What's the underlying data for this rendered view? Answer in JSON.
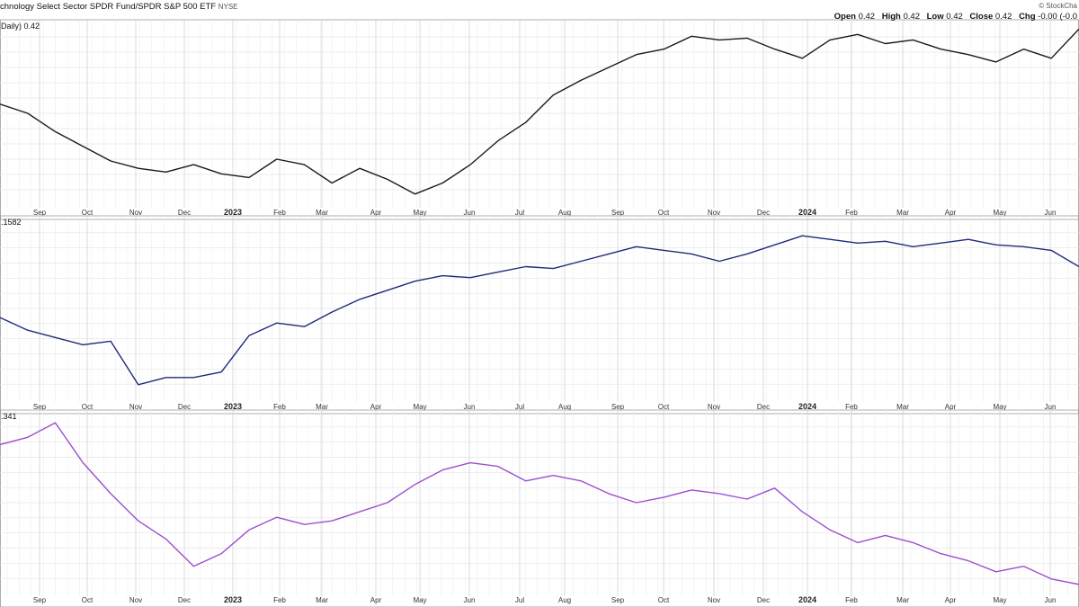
{
  "header": {
    "title": "chnology Select Sector SPDR Fund/SPDR S&P 500 ETF",
    "exchange": "NYSE",
    "watermark": "© StockCha",
    "ohlc": {
      "open_label": "Open",
      "open": "0.42",
      "high_label": "High",
      "high": "0.42",
      "low_label": "Low",
      "low": "0.42",
      "close_label": "Close",
      "close": "0.42",
      "chg_label": "Chg",
      "chg": "-0.00 (-0.0"
    }
  },
  "chart_data": [
    {
      "type": "line",
      "label": "Daily) 0.42",
      "color": "#1a1a1a",
      "ylim": [
        0,
        100
      ],
      "x_tick_labels": [
        "Sep",
        "Oct",
        "Nov",
        "Dec",
        "2023",
        "Feb",
        "Mar",
        "Apr",
        "May",
        "Jun",
        "Jul",
        "Aug",
        "Sep",
        "Oct",
        "Nov",
        "Dec",
        "2024",
        "Feb",
        "Mar",
        "Apr",
        "May",
        "Jun"
      ],
      "x": [
        0,
        3,
        6,
        9,
        12,
        15,
        18,
        21,
        24,
        27,
        30,
        33,
        36,
        39,
        42,
        45,
        48,
        51,
        54,
        57,
        60,
        63,
        66,
        69,
        72,
        75,
        78,
        81,
        84,
        87,
        90,
        93,
        96,
        99,
        102,
        105,
        108,
        111,
        114,
        117
      ],
      "values": [
        55,
        50,
        40,
        32,
        24,
        20,
        18,
        22,
        17,
        15,
        25,
        22,
        12,
        20,
        14,
        6,
        12,
        22,
        35,
        45,
        60,
        68,
        75,
        82,
        85,
        92,
        90,
        91,
        85,
        80,
        90,
        93,
        88,
        90,
        85,
        82,
        78,
        85,
        80,
        96
      ]
    },
    {
      "type": "line",
      "label": ".1582",
      "color": "#1e2a7a",
      "ylim": [
        0,
        100
      ],
      "x_tick_labels": [
        "Sep",
        "Oct",
        "Nov",
        "Dec",
        "2023",
        "Feb",
        "Mar",
        "Apr",
        "May",
        "Jun",
        "Jul",
        "Aug",
        "Sep",
        "Oct",
        "Nov",
        "Dec",
        "2024",
        "Feb",
        "Mar",
        "Apr",
        "May",
        "Jun"
      ],
      "x": [
        0,
        3,
        6,
        9,
        12,
        15,
        18,
        21,
        24,
        27,
        30,
        33,
        36,
        39,
        42,
        45,
        48,
        51,
        54,
        57,
        60,
        63,
        66,
        69,
        72,
        75,
        78,
        81,
        84,
        87,
        90,
        93,
        96,
        99,
        102,
        105,
        108,
        111,
        114,
        117
      ],
      "values": [
        45,
        38,
        34,
        30,
        32,
        8,
        12,
        12,
        15,
        35,
        42,
        40,
        48,
        55,
        60,
        65,
        68,
        67,
        70,
        73,
        72,
        76,
        80,
        84,
        82,
        80,
        76,
        80,
        85,
        90,
        88,
        86,
        87,
        84,
        86,
        88,
        85,
        84,
        82,
        73
      ]
    },
    {
      "type": "line",
      "label": ".341",
      "color": "#9b4fd0",
      "ylim": [
        0,
        100
      ],
      "x_tick_labels": [
        "Sep",
        "Oct",
        "Nov",
        "Dec",
        "2023",
        "Feb",
        "Mar",
        "Apr",
        "May",
        "Jun",
        "Jul",
        "Aug",
        "Sep",
        "Oct",
        "Nov",
        "Dec",
        "2024",
        "Feb",
        "Mar",
        "Apr",
        "May",
        "Jun"
      ],
      "x": [
        0,
        3,
        6,
        9,
        12,
        15,
        18,
        21,
        24,
        27,
        30,
        33,
        36,
        39,
        42,
        45,
        48,
        51,
        54,
        57,
        60,
        63,
        66,
        69,
        72,
        75,
        78,
        81,
        84,
        87,
        90,
        93,
        96,
        99,
        102,
        105,
        108,
        111,
        114,
        117
      ],
      "values": [
        82,
        86,
        94,
        72,
        55,
        40,
        30,
        15,
        22,
        35,
        42,
        38,
        40,
        45,
        50,
        60,
        68,
        72,
        70,
        62,
        65,
        62,
        55,
        50,
        53,
        57,
        55,
        52,
        58,
        45,
        35,
        28,
        32,
        28,
        22,
        18,
        12,
        15,
        8,
        5
      ]
    }
  ]
}
